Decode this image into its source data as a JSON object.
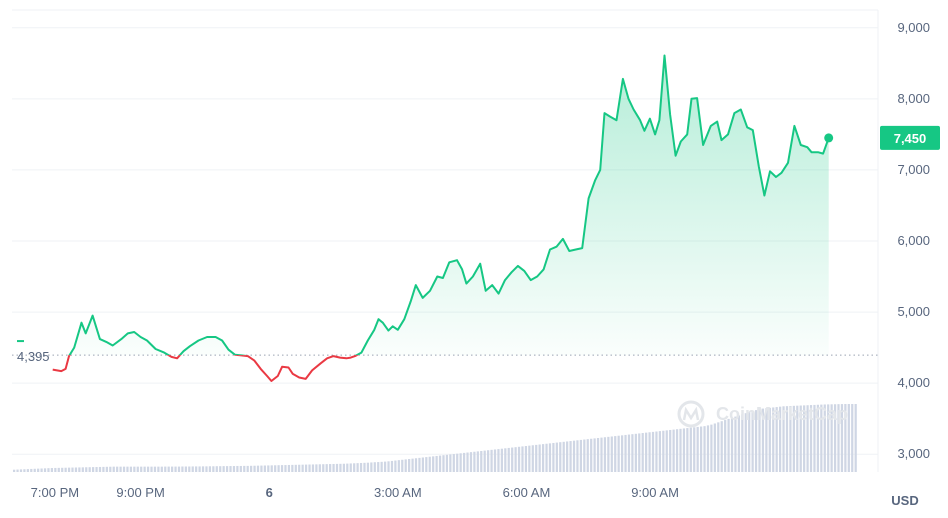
{
  "chart_data": {
    "type": "area",
    "title": "",
    "currency_label": "USD",
    "watermark": "CoinMarketCap",
    "baseline": {
      "value": 4395,
      "label": "4,395"
    },
    "current": {
      "value": 7450,
      "label": "7,450"
    },
    "ylim": [
      2750,
      9250
    ],
    "yticks": [
      {
        "value": 3000,
        "label": "3,000"
      },
      {
        "value": 4000,
        "label": "4,000"
      },
      {
        "value": 5000,
        "label": "5,000"
      },
      {
        "value": 6000,
        "label": "6,000"
      },
      {
        "value": 7000,
        "label": "7,000"
      },
      {
        "value": 8000,
        "label": "8,000"
      },
      {
        "value": 9000,
        "label": "9,000"
      }
    ],
    "x_unit": "hours since 6:00 PM",
    "xlim": [
      0,
      17.5
    ],
    "xticks": [
      {
        "value": 1,
        "label": "7:00 PM"
      },
      {
        "value": 3,
        "label": "9:00 PM"
      },
      {
        "value": 6,
        "label": "6"
      },
      {
        "value": 9,
        "label": "3:00 AM"
      },
      {
        "value": 12,
        "label": "6:00 AM"
      },
      {
        "value": 15,
        "label": "9:00 AM"
      }
    ],
    "colors": {
      "up": "#16c784",
      "down": "#ea3943",
      "fill_top": "#16c784",
      "volume": "#cfd6e4",
      "tag_bg": "#16c784"
    },
    "series": [
      {
        "values": [
          [
            0.95,
            4190
          ],
          [
            1.15,
            4170
          ],
          [
            1.25,
            4200
          ],
          [
            1.33,
            4380
          ],
          [
            1.45,
            4500
          ],
          [
            1.62,
            4850
          ],
          [
            1.72,
            4700
          ],
          [
            1.88,
            4950
          ],
          [
            2.05,
            4620
          ],
          [
            2.2,
            4580
          ],
          [
            2.35,
            4530
          ],
          [
            2.55,
            4620
          ],
          [
            2.7,
            4700
          ],
          [
            2.85,
            4720
          ],
          [
            3.0,
            4650
          ],
          [
            3.15,
            4600
          ],
          [
            3.35,
            4480
          ],
          [
            3.55,
            4430
          ],
          [
            3.72,
            4370
          ],
          [
            3.85,
            4350
          ],
          [
            4.0,
            4450
          ],
          [
            4.15,
            4520
          ],
          [
            4.35,
            4600
          ],
          [
            4.55,
            4650
          ],
          [
            4.75,
            4650
          ],
          [
            4.9,
            4600
          ],
          [
            5.05,
            4470
          ],
          [
            5.2,
            4400
          ],
          [
            5.35,
            4390
          ],
          [
            5.5,
            4380
          ],
          [
            5.65,
            4320
          ],
          [
            5.8,
            4200
          ],
          [
            5.95,
            4100
          ],
          [
            6.05,
            4030
          ],
          [
            6.2,
            4100
          ],
          [
            6.3,
            4230
          ],
          [
            6.45,
            4220
          ],
          [
            6.55,
            4130
          ],
          [
            6.7,
            4080
          ],
          [
            6.85,
            4060
          ],
          [
            7.0,
            4180
          ],
          [
            7.2,
            4280
          ],
          [
            7.35,
            4350
          ],
          [
            7.5,
            4380
          ],
          [
            7.65,
            4360
          ],
          [
            7.8,
            4350
          ],
          [
            7.9,
            4360
          ],
          [
            8.0,
            4380
          ],
          [
            8.15,
            4430
          ],
          [
            8.3,
            4600
          ],
          [
            8.45,
            4750
          ],
          [
            8.55,
            4900
          ],
          [
            8.65,
            4850
          ],
          [
            8.78,
            4740
          ],
          [
            8.88,
            4800
          ],
          [
            9.0,
            4750
          ],
          [
            9.15,
            4900
          ],
          [
            9.3,
            5150
          ],
          [
            9.42,
            5380
          ],
          [
            9.58,
            5200
          ],
          [
            9.75,
            5300
          ],
          [
            9.92,
            5500
          ],
          [
            10.05,
            5480
          ],
          [
            10.2,
            5700
          ],
          [
            10.38,
            5730
          ],
          [
            10.5,
            5600
          ],
          [
            10.6,
            5400
          ],
          [
            10.75,
            5500
          ],
          [
            10.92,
            5680
          ],
          [
            11.05,
            5300
          ],
          [
            11.2,
            5380
          ],
          [
            11.35,
            5260
          ],
          [
            11.5,
            5450
          ],
          [
            11.65,
            5560
          ],
          [
            11.8,
            5650
          ],
          [
            11.95,
            5580
          ],
          [
            12.1,
            5450
          ],
          [
            12.25,
            5500
          ],
          [
            12.4,
            5600
          ],
          [
            12.55,
            5880
          ],
          [
            12.7,
            5920
          ],
          [
            12.85,
            6030
          ],
          [
            13.0,
            5860
          ],
          [
            13.15,
            5880
          ],
          [
            13.3,
            5900
          ],
          [
            13.45,
            6600
          ],
          [
            13.6,
            6850
          ],
          [
            13.72,
            7000
          ],
          [
            13.82,
            7800
          ],
          [
            13.95,
            7750
          ],
          [
            14.1,
            7700
          ],
          [
            14.25,
            8280
          ],
          [
            14.38,
            8000
          ],
          [
            14.5,
            7850
          ],
          [
            14.65,
            7700
          ],
          [
            14.75,
            7550
          ],
          [
            14.88,
            7720
          ],
          [
            15.0,
            7500
          ],
          [
            15.1,
            7700
          ],
          [
            15.22,
            8610
          ],
          [
            15.35,
            7780
          ],
          [
            15.48,
            7200
          ],
          [
            15.6,
            7400
          ],
          [
            15.75,
            7500
          ],
          [
            15.85,
            8000
          ],
          [
            15.98,
            8010
          ],
          [
            16.12,
            7350
          ],
          [
            16.3,
            7620
          ],
          [
            16.45,
            7680
          ],
          [
            16.55,
            7420
          ],
          [
            16.7,
            7500
          ],
          [
            16.85,
            7800
          ],
          [
            17.0,
            7850
          ],
          [
            17.15,
            7600
          ],
          [
            17.28,
            7560
          ],
          [
            17.42,
            7050
          ],
          [
            17.55,
            6640
          ],
          [
            17.68,
            6980
          ],
          [
            17.82,
            6900
          ],
          [
            17.95,
            6960
          ],
          [
            18.1,
            7100
          ],
          [
            18.25,
            7620
          ],
          [
            18.4,
            7350
          ],
          [
            18.55,
            7320
          ],
          [
            18.65,
            7250
          ],
          [
            18.8,
            7250
          ],
          [
            18.92,
            7230
          ],
          [
            19.05,
            7450
          ]
        ]
      }
    ],
    "volume": [
      0.3,
      0.32,
      0.34,
      0.36,
      0.38,
      0.4,
      0.42,
      0.44,
      0.46,
      0.48,
      0.5,
      0.52,
      0.53,
      0.54,
      0.55,
      0.56,
      0.57,
      0.58,
      0.59,
      0.6,
      0.61,
      0.62,
      0.63,
      0.64,
      0.65,
      0.66,
      0.67,
      0.68,
      0.69,
      0.7,
      0.7,
      0.7,
      0.7,
      0.7,
      0.7,
      0.7,
      0.7,
      0.7,
      0.7,
      0.7,
      0.7,
      0.7,
      0.7,
      0.7,
      0.71,
      0.71,
      0.71,
      0.71,
      0.71,
      0.72,
      0.72,
      0.72,
      0.73,
      0.73,
      0.73,
      0.74,
      0.74,
      0.75,
      0.75,
      0.76,
      0.76,
      0.77,
      0.77,
      0.78,
      0.78,
      0.79,
      0.79,
      0.8,
      0.8,
      0.81,
      0.82,
      0.83,
      0.84,
      0.85,
      0.86,
      0.87,
      0.88,
      0.89,
      0.9,
      0.91,
      0.92,
      0.93,
      0.94,
      0.95,
      0.96,
      0.97,
      0.98,
      0.99,
      1.0,
      1.01,
      1.02,
      1.03,
      1.04,
      1.05,
      1.06,
      1.07,
      1.08,
      1.1,
      1.12,
      1.14,
      1.16,
      1.18,
      1.2,
      1.22,
      1.25,
      1.28,
      1.3,
      1.33,
      1.36,
      1.4,
      1.45,
      1.5,
      1.55,
      1.6,
      1.65,
      1.7,
      1.75,
      1.8,
      1.85,
      1.9,
      1.95,
      2.0,
      2.05,
      2.1,
      2.15,
      2.2,
      2.25,
      2.3,
      2.35,
      2.4,
      2.45,
      2.5,
      2.55,
      2.6,
      2.65,
      2.7,
      2.75,
      2.8,
      2.85,
      2.9,
      2.95,
      3.0,
      3.05,
      3.1,
      3.15,
      3.2,
      3.25,
      3.3,
      3.35,
      3.4,
      3.45,
      3.5,
      3.55,
      3.6,
      3.65,
      3.7,
      3.75,
      3.8,
      3.85,
      3.9,
      3.95,
      4.0,
      4.05,
      4.1,
      4.15,
      4.2,
      4.25,
      4.3,
      4.35,
      4.4,
      4.45,
      4.5,
      4.55,
      4.6,
      4.65,
      4.7,
      4.75,
      4.8,
      4.85,
      4.9,
      4.95,
      5.0,
      5.05,
      5.1,
      5.15,
      5.2,
      5.25,
      5.3,
      5.35,
      5.4,
      5.45,
      5.5,
      5.55,
      5.6,
      5.65,
      5.7,
      5.75,
      5.8,
      5.85,
      5.9,
      5.95,
      6.0,
      6.1,
      6.2,
      6.35,
      6.5,
      6.65,
      6.8,
      6.95,
      7.1,
      7.25,
      7.4,
      7.55,
      7.7,
      7.85,
      8.0,
      8.1,
      8.2,
      8.3,
      8.35,
      8.4,
      8.45,
      8.5,
      8.55,
      8.6,
      8.62,
      8.64,
      8.66,
      8.68,
      8.7,
      8.72,
      8.74,
      8.76,
      8.78,
      8.8,
      8.82,
      8.84,
      8.85,
      8.86,
      8.87,
      8.88,
      8.89,
      8.9,
      8.9,
      8.9,
      8.9
    ]
  }
}
